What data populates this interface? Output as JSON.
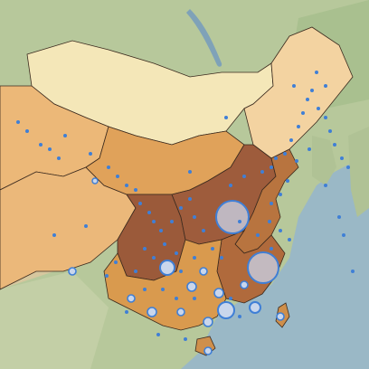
{
  "map": {
    "colors": {
      "sea": "#9ab8c6",
      "terrain_green": "#b5c79a",
      "terrain_desert": "#d9c79a",
      "mongolia": "#f4e7b8",
      "region_high": "#9b5a3a",
      "region_mid_high": "#b8743f",
      "region_mid": "#d99a4e",
      "region_low": "#ecb878",
      "region_lowest": "#f3d3a1",
      "border": "#3b2a1e",
      "marker_fill": "#c9d6ec",
      "marker_stroke": "#3f7fd6"
    },
    "regions": [
      {
        "name": "mongolia-region",
        "level": "lightest"
      },
      {
        "name": "northeast-region",
        "level": "lowest"
      },
      {
        "name": "west-region",
        "level": "low"
      },
      {
        "name": "tibet-region",
        "level": "low"
      },
      {
        "name": "north-central-region",
        "level": "mid"
      },
      {
        "name": "sichuan-region",
        "level": "high"
      },
      {
        "name": "central-region",
        "level": "high"
      },
      {
        "name": "east-region",
        "level": "mid-high"
      },
      {
        "name": "south-region",
        "level": "mid"
      },
      {
        "name": "southeast-region",
        "level": "mid-high"
      },
      {
        "name": "hainan-island",
        "level": "mid"
      },
      {
        "name": "taiwan-island",
        "level": "mid"
      }
    ],
    "city_markers": [
      {
        "name": "large-marker-north",
        "size": "large"
      },
      {
        "name": "large-marker-east",
        "size": "large"
      },
      {
        "name": "medium-marker-sichuan",
        "size": "medium"
      },
      {
        "name": "medium-marker-south",
        "size": "medium"
      },
      {
        "name": "small-marker",
        "size": "small"
      }
    ]
  }
}
